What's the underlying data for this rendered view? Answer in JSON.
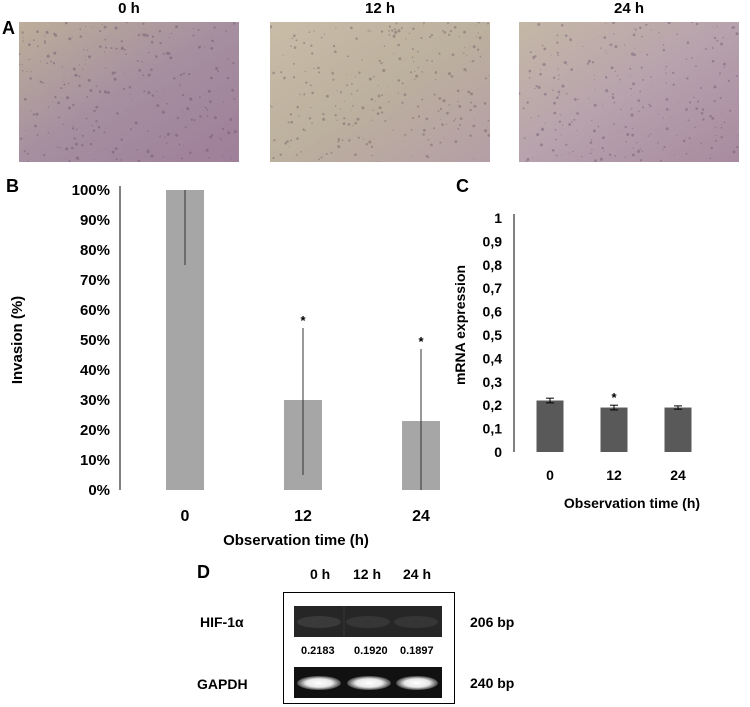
{
  "panels": {
    "A": {
      "letter": "A",
      "images": [
        {
          "title": "0 h",
          "tint": "#a7879e"
        },
        {
          "title": "12 h",
          "tint": "#bfb29f"
        },
        {
          "title": "24 h",
          "tint": "#b9a5ae"
        }
      ]
    },
    "B": {
      "letter": "B"
    },
    "C": {
      "letter": "C"
    },
    "D": {
      "letter": "D",
      "lanes": [
        "0 h",
        "12 h",
        "24 h"
      ],
      "rows": [
        {
          "label": "HIF-1α",
          "size": "206 bp"
        },
        {
          "label": "GAPDH",
          "size": "240 bp"
        }
      ],
      "values": [
        "0.2183",
        "0.1920",
        "0.1897"
      ]
    }
  },
  "chart_data": [
    {
      "type": "bar",
      "categories": [
        "0",
        "12",
        "24"
      ],
      "values": [
        100,
        30,
        23
      ],
      "error_bars": [
        {
          "low": 75,
          "high": 100
        },
        {
          "low": 5,
          "high": 54
        },
        {
          "low": 0,
          "high": 47
        }
      ],
      "significance": [
        "",
        "*",
        "*"
      ],
      "xlabel": "Observation time (h)",
      "ylabel": "Invasion (%)",
      "ylim": [
        0,
        100
      ],
      "yticks": [
        "0%",
        "10%",
        "20%",
        "30%",
        "40%",
        "50%",
        "60%",
        "70%",
        "80%",
        "90%",
        "100%"
      ],
      "bar_color": "#a6a6a6",
      "grid": false
    },
    {
      "type": "bar",
      "categories": [
        "0",
        "12",
        "24"
      ],
      "values": [
        0.22,
        0.19,
        0.19
      ],
      "error_bars": [
        {
          "low": 0.21,
          "high": 0.23
        },
        {
          "low": 0.18,
          "high": 0.2
        },
        {
          "low": 0.183,
          "high": 0.197
        }
      ],
      "significance": [
        "",
        "*",
        ""
      ],
      "xlabel": "Observation time (h)",
      "ylabel": "mRNA expression",
      "ylim": [
        0,
        1
      ],
      "yticks": [
        "0",
        "0,1",
        "0,2",
        "0,3",
        "0,4",
        "0,5",
        "0,6",
        "0,7",
        "0,8",
        "0,9",
        "1"
      ],
      "bar_color": "#595959",
      "grid": false
    }
  ]
}
